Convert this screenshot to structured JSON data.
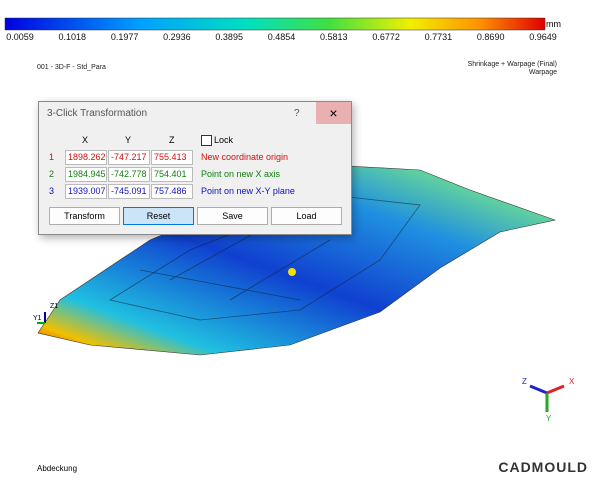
{
  "legend": {
    "unit": "mm",
    "ticks": [
      "0.0059",
      "0.1018",
      "0.1977",
      "0.2936",
      "0.3895",
      "0.4854",
      "0.5813",
      "0.6772",
      "0.7731",
      "0.8690",
      "0.9649"
    ]
  },
  "header": {
    "model": "001 - 3D-F - Std_Para",
    "result": "Shrinkage + Warpage (Final)",
    "subresult": "Warpage"
  },
  "dialog": {
    "title": "3-Click Transformation",
    "help": "?",
    "columns": [
      "X",
      "Y",
      "Z"
    ],
    "lock": "Lock",
    "rows": [
      {
        "index": "1",
        "x": "1898.262",
        "y": "-747.217",
        "z": "755.413",
        "label": "New coordinate origin"
      },
      {
        "index": "2",
        "x": "1984.945",
        "y": "-742.778",
        "z": "754.401",
        "label": "Point on new X axis"
      },
      {
        "index": "3",
        "x": "1939.007",
        "y": "-745.091",
        "z": "757.486",
        "label": "Point on new X-Y plane"
      }
    ],
    "buttons": [
      "Transform",
      "Reset",
      "Save",
      "Load"
    ]
  },
  "viewport": {
    "origin_labels": [
      "Z1",
      "Y1"
    ],
    "triad": [
      "Z",
      "X",
      "Y"
    ]
  },
  "footer": {
    "name": "Abdeckung",
    "brand": "CADMOULD"
  }
}
